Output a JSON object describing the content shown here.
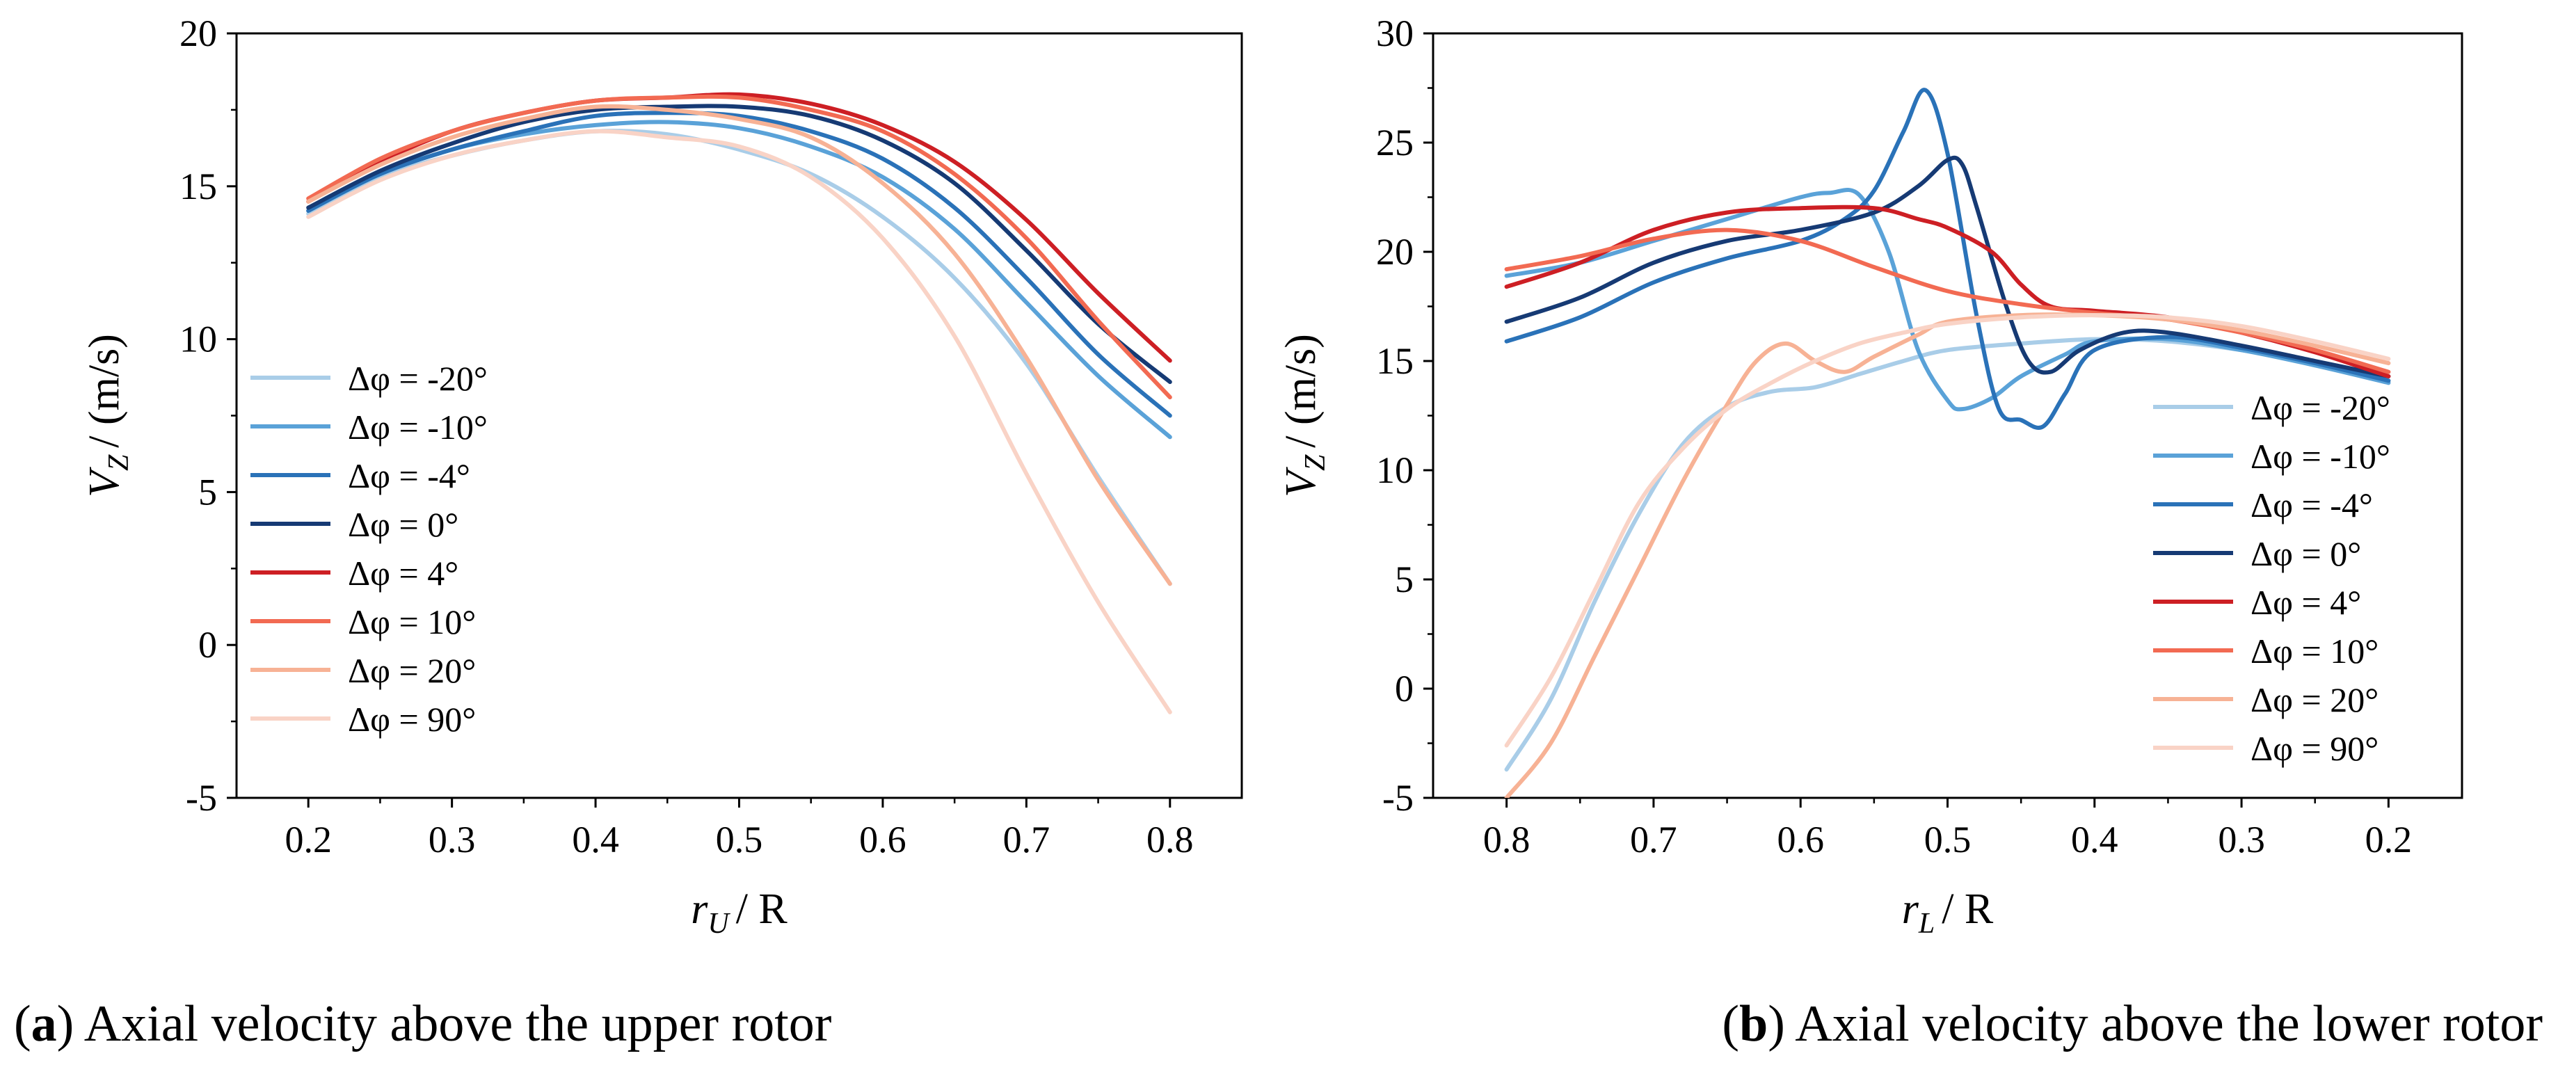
{
  "chart_data": [
    {
      "id": "upper",
      "type": "line",
      "xlabel": "r",
      "xlabel_sub": "U",
      "xlabel_suffix": "/ R",
      "ylabel": "V",
      "ylabel_sub": "Z",
      "ylabel_suffix": "/ (m/s)",
      "xlim": [
        0.15,
        0.85
      ],
      "ylim": [
        -5,
        20
      ],
      "x_reversed": false,
      "xticks": [
        0.2,
        0.3,
        0.4,
        0.5,
        0.6,
        0.7,
        0.8
      ],
      "xtick_labels": [
        "0.2",
        "0.3",
        "0.4",
        "0.5",
        "0.6",
        "0.7",
        "0.8"
      ],
      "yticks": [
        -5,
        0,
        5,
        10,
        15,
        20
      ],
      "ytick_labels": [
        "-5",
        "0",
        "5",
        "10",
        "15",
        "20"
      ],
      "legend_position": "lower-left",
      "x": [
        0.2,
        0.25,
        0.3,
        0.35,
        0.4,
        0.45,
        0.5,
        0.55,
        0.6,
        0.65,
        0.7,
        0.75,
        0.8
      ],
      "series": [
        {
          "name": "Δφ = -20°",
          "color": "#a9cde8",
          "values": [
            14.1,
            15.3,
            16.0,
            16.5,
            16.8,
            16.7,
            16.2,
            15.4,
            14.0,
            12.0,
            9.2,
            5.5,
            2.0
          ]
        },
        {
          "name": "Δφ = -10°",
          "color": "#5aa2d8",
          "values": [
            14.2,
            15.4,
            16.2,
            16.7,
            17.0,
            17.1,
            16.9,
            16.3,
            15.3,
            13.6,
            11.2,
            8.8,
            6.8
          ]
        },
        {
          "name": "Δφ = -4°",
          "color": "#2a72b8",
          "values": [
            14.2,
            15.4,
            16.2,
            16.8,
            17.3,
            17.4,
            17.3,
            16.8,
            15.9,
            14.3,
            12.0,
            9.5,
            7.5
          ]
        },
        {
          "name": "Δφ = 0°",
          "color": "#163a74",
          "values": [
            14.3,
            15.5,
            16.4,
            17.1,
            17.5,
            17.6,
            17.6,
            17.3,
            16.5,
            15.1,
            12.9,
            10.5,
            8.6
          ]
        },
        {
          "name": "Δφ = 4°",
          "color": "#cd1f24",
          "values": [
            14.5,
            15.8,
            16.8,
            17.4,
            17.8,
            17.9,
            18.0,
            17.7,
            17.0,
            15.8,
            13.9,
            11.5,
            9.3
          ]
        },
        {
          "name": "Δφ = 10°",
          "color": "#f26a52",
          "values": [
            14.6,
            15.9,
            16.8,
            17.4,
            17.8,
            17.9,
            17.9,
            17.5,
            16.8,
            15.4,
            13.3,
            10.6,
            8.1
          ]
        },
        {
          "name": "Δφ = 20°",
          "color": "#f7b295",
          "values": [
            14.5,
            15.7,
            16.6,
            17.2,
            17.6,
            17.5,
            17.2,
            16.6,
            15.1,
            12.8,
            9.4,
            5.4,
            2.0
          ]
        },
        {
          "name": "Δφ = 90°",
          "color": "#f9d3c6",
          "values": [
            14.0,
            15.2,
            16.0,
            16.5,
            16.8,
            16.6,
            16.3,
            15.3,
            13.3,
            10.1,
            5.6,
            1.4,
            -2.2
          ]
        }
      ]
    },
    {
      "id": "lower",
      "type": "line",
      "xlabel": "r",
      "xlabel_sub": "L",
      "xlabel_suffix": "/ R",
      "ylabel": "V",
      "ylabel_sub": "Z",
      "ylabel_suffix": "/ (m/s)",
      "xlim": [
        0.85,
        0.15
      ],
      "ylim": [
        -5,
        30
      ],
      "x_reversed": true,
      "xticks": [
        0.8,
        0.7,
        0.6,
        0.5,
        0.4,
        0.3,
        0.2
      ],
      "xtick_labels": [
        "0.8",
        "0.7",
        "0.6",
        "0.5",
        "0.4",
        "0.3",
        "0.2"
      ],
      "yticks": [
        -5,
        0,
        5,
        10,
        15,
        20,
        25,
        30
      ],
      "ytick_labels": [
        "-5",
        "0",
        "5",
        "10",
        "15",
        "20",
        "25",
        "30"
      ],
      "legend_position": "lower-right",
      "series": [
        {
          "name": "Δφ = -20°",
          "color": "#a9cde8",
          "x": [
            0.8,
            0.77,
            0.74,
            0.71,
            0.68,
            0.65,
            0.62,
            0.59,
            0.56,
            0.53,
            0.5,
            0.45,
            0.4,
            0.35,
            0.3,
            0.25,
            0.2
          ],
          "values": [
            -3.7,
            -0.5,
            4.0,
            8.0,
            11.2,
            12.9,
            13.6,
            13.8,
            14.4,
            15.0,
            15.5,
            15.8,
            16.0,
            15.9,
            15.5,
            14.9,
            14.1
          ]
        },
        {
          "name": "Δφ = -10°",
          "color": "#5aa2d8",
          "x": [
            0.8,
            0.75,
            0.7,
            0.65,
            0.6,
            0.58,
            0.56,
            0.54,
            0.52,
            0.5,
            0.49,
            0.47,
            0.45,
            0.42,
            0.4,
            0.35,
            0.3,
            0.25,
            0.2
          ],
          "values": [
            18.9,
            19.5,
            20.5,
            21.5,
            22.5,
            22.7,
            22.6,
            20.0,
            15.5,
            13.2,
            12.8,
            13.3,
            14.3,
            15.3,
            15.9,
            16.0,
            15.5,
            14.8,
            14.0
          ]
        },
        {
          "name": "Δφ = -4°",
          "color": "#2a72b8",
          "x": [
            0.8,
            0.75,
            0.7,
            0.65,
            0.6,
            0.57,
            0.55,
            0.53,
            0.515,
            0.5,
            0.48,
            0.465,
            0.45,
            0.435,
            0.42,
            0.4,
            0.35,
            0.3,
            0.25,
            0.2
          ],
          "values": [
            15.9,
            17.0,
            18.6,
            19.7,
            20.5,
            21.5,
            22.8,
            25.5,
            27.4,
            24.5,
            17.0,
            12.8,
            12.3,
            12.0,
            13.5,
            15.5,
            16.1,
            15.6,
            14.9,
            14.1
          ]
        },
        {
          "name": "Δφ = 0°",
          "color": "#163a74",
          "x": [
            0.8,
            0.75,
            0.7,
            0.65,
            0.6,
            0.55,
            0.52,
            0.5,
            0.49,
            0.48,
            0.46,
            0.445,
            0.43,
            0.41,
            0.38,
            0.35,
            0.3,
            0.25,
            0.2
          ],
          "values": [
            16.8,
            17.9,
            19.5,
            20.5,
            21.0,
            21.8,
            23.0,
            24.2,
            24.0,
            22.0,
            17.5,
            15.0,
            14.5,
            15.5,
            16.3,
            16.3,
            15.7,
            15.0,
            14.3
          ]
        },
        {
          "name": "Δφ = 4°",
          "color": "#cd1f24",
          "x": [
            0.8,
            0.75,
            0.7,
            0.65,
            0.6,
            0.55,
            0.52,
            0.5,
            0.47,
            0.45,
            0.43,
            0.4,
            0.35,
            0.3,
            0.25,
            0.2
          ],
          "values": [
            18.4,
            19.5,
            21.0,
            21.8,
            22.0,
            22.0,
            21.5,
            21.1,
            20.0,
            18.5,
            17.5,
            17.3,
            17.0,
            16.3,
            15.4,
            14.3
          ]
        },
        {
          "name": "Δφ = 10°",
          "color": "#f26a52",
          "x": [
            0.8,
            0.75,
            0.7,
            0.65,
            0.6,
            0.55,
            0.5,
            0.45,
            0.4,
            0.35,
            0.3,
            0.25,
            0.2
          ],
          "values": [
            19.2,
            19.8,
            20.6,
            21.0,
            20.5,
            19.3,
            18.2,
            17.6,
            17.2,
            16.9,
            16.3,
            15.5,
            14.5
          ]
        },
        {
          "name": "Δφ = 20°",
          "color": "#f7b295",
          "x": [
            0.8,
            0.77,
            0.74,
            0.71,
            0.68,
            0.65,
            0.63,
            0.61,
            0.59,
            0.57,
            0.55,
            0.52,
            0.5,
            0.45,
            0.4,
            0.35,
            0.3,
            0.25,
            0.2
          ],
          "values": [
            -5.0,
            -2.5,
            1.5,
            5.5,
            9.5,
            13.0,
            15.0,
            15.8,
            15.0,
            14.5,
            15.2,
            16.2,
            16.8,
            17.1,
            17.1,
            16.9,
            16.4,
            15.7,
            14.9
          ]
        },
        {
          "name": "Δφ = 90°",
          "color": "#f9d3c6",
          "x": [
            0.8,
            0.77,
            0.74,
            0.71,
            0.68,
            0.65,
            0.62,
            0.59,
            0.56,
            0.53,
            0.5,
            0.45,
            0.4,
            0.35,
            0.3,
            0.25,
            0.2
          ],
          "values": [
            -2.6,
            0.5,
            4.5,
            8.5,
            11.0,
            12.8,
            14.0,
            15.0,
            15.8,
            16.3,
            16.7,
            17.0,
            17.1,
            17.0,
            16.6,
            15.9,
            15.1
          ]
        }
      ]
    }
  ],
  "captions": [
    {
      "tag": "a",
      "text": "Axial velocity above the upper rotor"
    },
    {
      "tag": "b",
      "text": "Axial velocity above the lower rotor"
    }
  ]
}
